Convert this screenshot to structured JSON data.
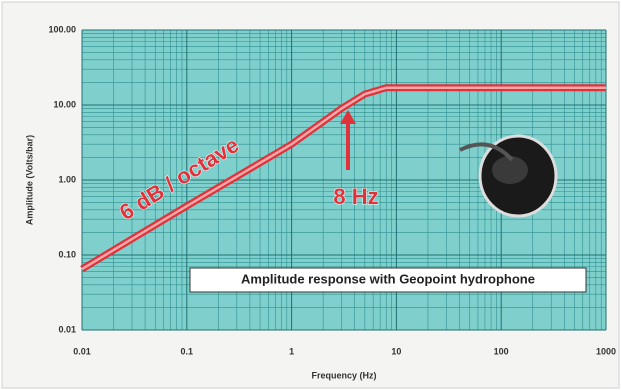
{
  "chart_data": {
    "type": "line",
    "ylabel": "Amplitude (Volts/bar)",
    "xlabel": "Frequency (Hz)",
    "x": [
      0.01,
      0.1,
      1,
      3,
      5,
      8,
      1000
    ],
    "values": [
      0.065,
      0.45,
      3.0,
      9,
      14,
      17,
      17
    ],
    "color": "#e0323a",
    "xlim": [
      0.01,
      1000
    ],
    "ylim": [
      0.01,
      100
    ],
    "xticks": [
      0.01,
      0.1,
      1,
      10,
      100,
      1000
    ],
    "yticks": [
      {
        "value": 0.01,
        "label": "0.01"
      },
      {
        "value": 0.1,
        "label": "0.10"
      },
      {
        "value": 1,
        "label": "1.00"
      },
      {
        "value": 10,
        "label": "10.00"
      },
      {
        "value": 100,
        "label": "100.00"
      }
    ],
    "log_x": true,
    "log_y": true,
    "grid": true,
    "annotations": [
      "6 dB / octave",
      "8 Hz",
      "Amplitude response with Geopoint hydrophone"
    ]
  }
}
